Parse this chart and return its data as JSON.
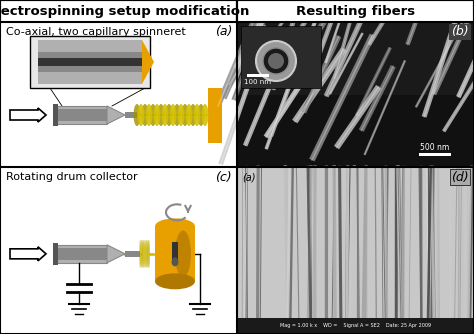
{
  "title_left": "Electrospinning setup modification",
  "title_right": "Resulting fibers",
  "label_a": "(a)",
  "label_b": "(b)",
  "label_c": "(c)",
  "label_d": "(d)",
  "label_inner_d": "(a)",
  "subtitle_top": "Co-axial, two capillary spinneret",
  "subtitle_bottom": "Rotating drum collector",
  "scale_100nm": "100 nm",
  "scale_500nm": "500 nm",
  "bg_color": "#ffffff",
  "border_color": "#000000",
  "arrow_fc": "#ffffff",
  "arrow_ec": "#000000",
  "gold_color": "#e8a000",
  "gold_dark": "#b07800",
  "gray_light": "#b0b0b0",
  "gray_mid": "#888888",
  "gray_dark": "#555555",
  "coil_color": "#d4c000",
  "coil_dark": "#a09000",
  "title_fontsize": 9.5,
  "subtitle_fontsize": 8,
  "label_fontsize": 9
}
